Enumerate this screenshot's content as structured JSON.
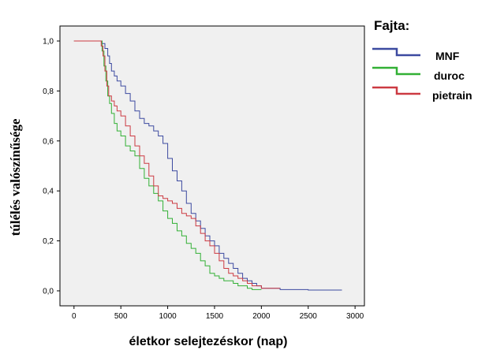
{
  "chart_data": {
    "type": "line",
    "xlabel": "életkor selejtezéskor (nap)",
    "ylabel": "túlélés valószínűsége",
    "xlim": [
      -150,
      3100
    ],
    "ylim": [
      -0.06,
      1.06
    ],
    "xticks": [
      "0",
      "500",
      "1000",
      "1500",
      "2000",
      "2500",
      "3000"
    ],
    "yticks": [
      "0,0",
      "0,2",
      "0,4",
      "0,6",
      "0,8",
      "1,0"
    ],
    "grid": false,
    "legend": {
      "title": "Fajta:",
      "position": "top-right"
    },
    "series": [
      {
        "name": "MNF",
        "color": "#3c4aa0",
        "step": true,
        "x": [
          0,
          270,
          300,
          330,
          360,
          380,
          400,
          430,
          460,
          500,
          550,
          600,
          650,
          700,
          750,
          800,
          850,
          900,
          950,
          1000,
          1050,
          1100,
          1150,
          1200,
          1250,
          1300,
          1350,
          1400,
          1450,
          1500,
          1550,
          1600,
          1650,
          1700,
          1750,
          1800,
          1850,
          1900,
          1950,
          2000,
          2100,
          2200,
          2500,
          2860
        ],
        "y": [
          1.0,
          1.0,
          0.99,
          0.97,
          0.94,
          0.91,
          0.88,
          0.86,
          0.84,
          0.82,
          0.79,
          0.76,
          0.72,
          0.69,
          0.67,
          0.66,
          0.64,
          0.62,
          0.59,
          0.53,
          0.48,
          0.44,
          0.4,
          0.35,
          0.31,
          0.28,
          0.25,
          0.22,
          0.2,
          0.18,
          0.15,
          0.13,
          0.11,
          0.09,
          0.07,
          0.05,
          0.04,
          0.03,
          0.02,
          0.01,
          0.01,
          0.005,
          0.003,
          0.003
        ]
      },
      {
        "name": "duroc",
        "color": "#32b035",
        "step": true,
        "x": [
          0,
          280,
          300,
          320,
          340,
          360,
          380,
          400,
          430,
          460,
          500,
          550,
          600,
          650,
          700,
          750,
          800,
          850,
          900,
          950,
          1000,
          1050,
          1100,
          1150,
          1200,
          1250,
          1300,
          1350,
          1400,
          1450,
          1500,
          1550,
          1600,
          1650,
          1700,
          1750,
          1800,
          1850,
          1900,
          2000
        ],
        "y": [
          1.0,
          1.0,
          0.96,
          0.9,
          0.84,
          0.78,
          0.75,
          0.71,
          0.67,
          0.64,
          0.62,
          0.58,
          0.56,
          0.54,
          0.49,
          0.45,
          0.42,
          0.39,
          0.36,
          0.32,
          0.29,
          0.27,
          0.24,
          0.22,
          0.19,
          0.17,
          0.15,
          0.12,
          0.1,
          0.07,
          0.06,
          0.05,
          0.04,
          0.04,
          0.03,
          0.02,
          0.02,
          0.01,
          0.005,
          0.005
        ]
      },
      {
        "name": "pietrain",
        "color": "#cc3a42",
        "step": true,
        "x": [
          0,
          270,
          290,
          310,
          330,
          350,
          370,
          400,
          430,
          460,
          500,
          550,
          600,
          650,
          700,
          750,
          800,
          850,
          900,
          950,
          1000,
          1050,
          1100,
          1150,
          1200,
          1250,
          1300,
          1350,
          1400,
          1450,
          1500,
          1550,
          1600,
          1650,
          1700,
          1750,
          1800,
          1850,
          1900,
          2000,
          2100,
          2200
        ],
        "y": [
          1.0,
          1.0,
          0.98,
          0.94,
          0.88,
          0.82,
          0.78,
          0.76,
          0.74,
          0.72,
          0.7,
          0.66,
          0.62,
          0.58,
          0.54,
          0.51,
          0.46,
          0.42,
          0.38,
          0.37,
          0.36,
          0.35,
          0.33,
          0.31,
          0.3,
          0.29,
          0.26,
          0.23,
          0.2,
          0.18,
          0.15,
          0.12,
          0.09,
          0.07,
          0.06,
          0.05,
          0.04,
          0.03,
          0.02,
          0.01,
          0.01,
          0.01
        ]
      }
    ]
  }
}
